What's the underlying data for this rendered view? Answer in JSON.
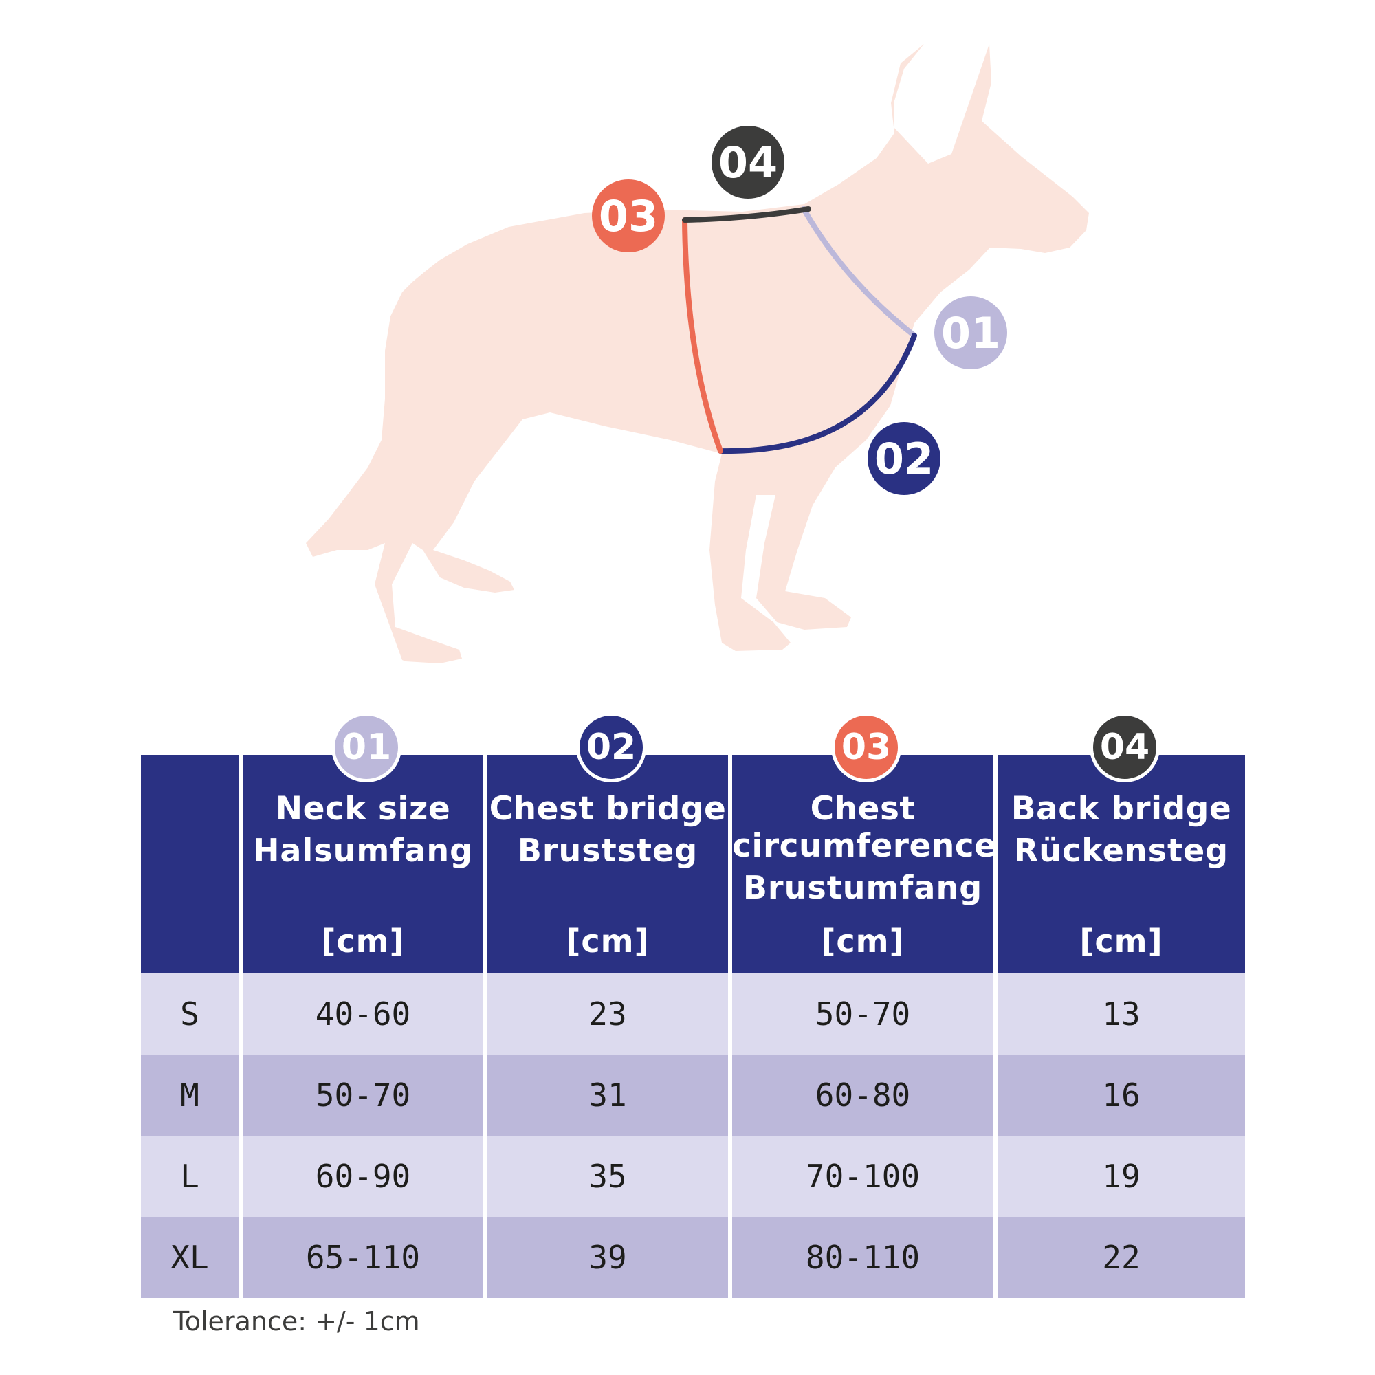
{
  "colors": {
    "dog": "#fbe4dc",
    "neck": "#bcb8da",
    "chest_bridge": "#2a3183",
    "chest_circumference": "#ec6a53",
    "back_bridge": "#3c3c3b",
    "header_bg": "#2a3183",
    "row_light": "#dcdaee",
    "row_dark": "#bcb8da"
  },
  "diagram": {
    "badges": [
      {
        "label": "04",
        "name": "back-bridge-badge"
      },
      {
        "label": "03",
        "name": "chest-circumference-badge"
      },
      {
        "label": "01",
        "name": "neck-size-badge"
      },
      {
        "label": "02",
        "name": "chest-bridge-badge"
      }
    ]
  },
  "table": {
    "columns": [
      {
        "badge": "01",
        "en": "Neck size",
        "en2": "",
        "de": "Halsumfang",
        "unit": "[cm]"
      },
      {
        "badge": "02",
        "en": "Chest bridge",
        "en2": "",
        "de": "Bruststeg",
        "unit": "[cm]"
      },
      {
        "badge": "03",
        "en": "Chest",
        "en2": "circumference",
        "de": "Brustumfang",
        "unit": "[cm]"
      },
      {
        "badge": "04",
        "en": "Back bridge",
        "en2": "",
        "de": "Rückensteg",
        "unit": "[cm]"
      }
    ],
    "rows": [
      {
        "size": "S",
        "neck": "40-60",
        "chest_bridge": "23",
        "chest_circ": "50-70",
        "back_bridge": "13"
      },
      {
        "size": "M",
        "neck": "50-70",
        "chest_bridge": "31",
        "chest_circ": "60-80",
        "back_bridge": "16"
      },
      {
        "size": "L",
        "neck": "60-90",
        "chest_bridge": "35",
        "chest_circ": "70-100",
        "back_bridge": "19"
      },
      {
        "size": "XL",
        "neck": "65-110",
        "chest_bridge": "39",
        "chest_circ": "80-110",
        "back_bridge": "22"
      }
    ]
  },
  "footer": {
    "tolerance": "Tolerance: +/- 1cm"
  }
}
